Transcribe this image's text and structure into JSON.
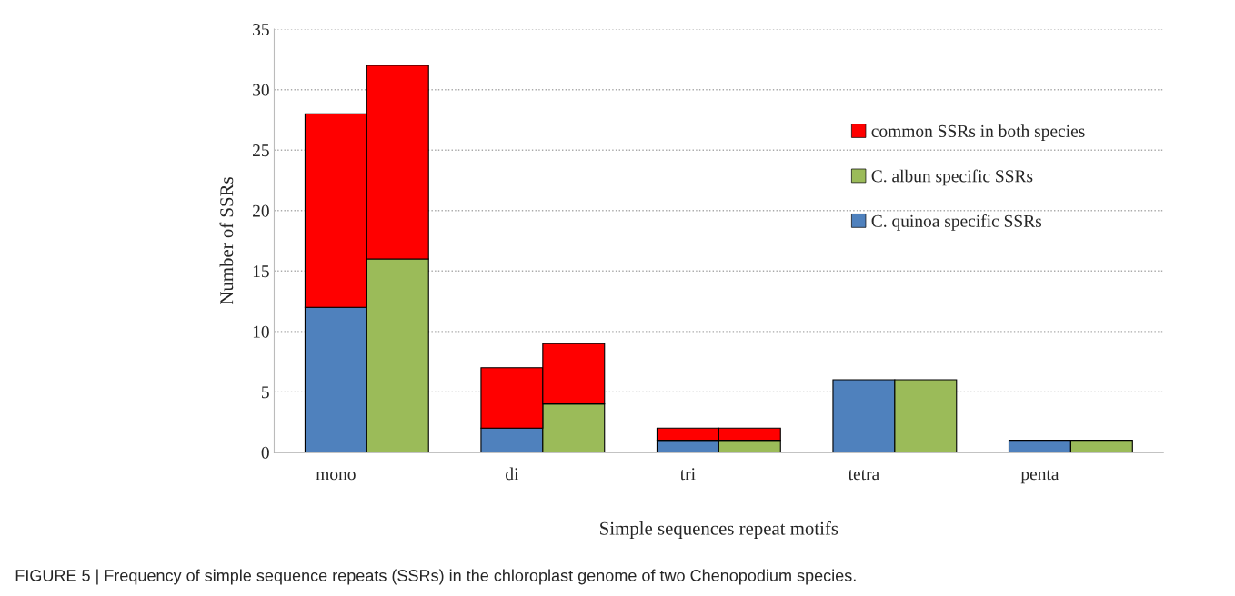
{
  "chart_data": {
    "type": "bar",
    "stacked": true,
    "categories": [
      "mono",
      null,
      "di",
      null,
      "tri",
      null,
      "tetra",
      null,
      "penta",
      null
    ],
    "series": [
      {
        "name": "C. quinoa specific SSRs",
        "color": "#4f81bd",
        "values": [
          12,
          null,
          2,
          null,
          1,
          null,
          6,
          null,
          1,
          null
        ]
      },
      {
        "name": "C. albun specific SSRs",
        "color": "#9bbb59",
        "values": [
          null,
          16,
          null,
          4,
          null,
          1,
          null,
          6,
          null,
          1
        ]
      },
      {
        "name": "common SSRs in both species",
        "color": "#ff0000",
        "values": [
          16,
          16,
          5,
          5,
          1,
          1,
          null,
          null,
          null,
          null
        ]
      }
    ],
    "ylim": [
      0,
      35
    ],
    "yticks": [
      0,
      5,
      10,
      15,
      20,
      25,
      30,
      35
    ],
    "grid": "y",
    "legend": "right",
    "xlabel": "Simple sequences repeat motifs",
    "ylabel": "Number of SSRs",
    "annotations": [
      "FIGURE 5 | Frequency of simple sequence repeats (SSRs) in the chloroplast genome of two Chenopodium species."
    ]
  }
}
